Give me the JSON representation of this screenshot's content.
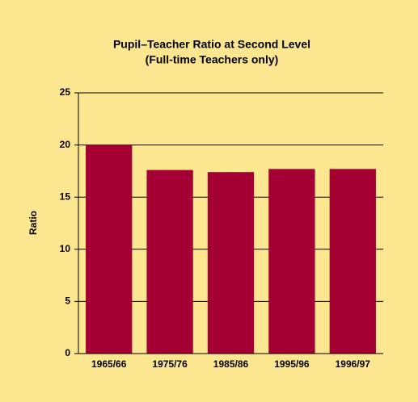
{
  "chart_data": {
    "type": "bar",
    "title": "Pupil–Teacher Ratio at Second Level",
    "subtitle": "(Full-time Teachers only)",
    "y_label": "Ratio",
    "categories": [
      "1965/66",
      "1975/76",
      "1985/86",
      "1995/96",
      "1996/97"
    ],
    "values": [
      20,
      17.6,
      17.4,
      17.7,
      17.7
    ],
    "color": "#a50034",
    "ylim": [
      0,
      25
    ],
    "yticks": [
      0,
      5,
      10,
      15,
      20,
      25
    ],
    "grid": true
  }
}
